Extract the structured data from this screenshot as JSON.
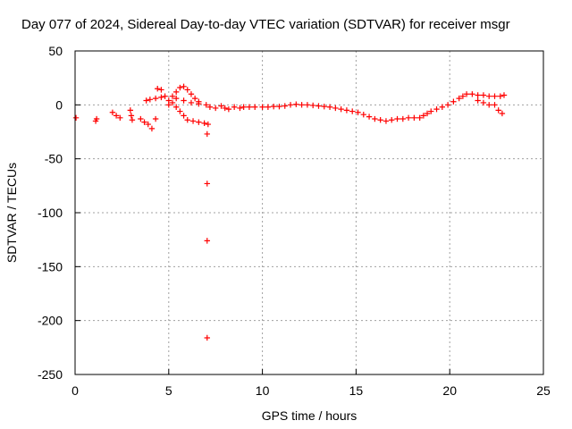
{
  "chart_data": {
    "type": "scatter",
    "title": "Day 077 of 2024, Sidereal Day-to-day VTEC variation (SDTVAR) for receiver msgr",
    "xlabel": "GPS time / hours",
    "ylabel": "SDTVAR / TECUs",
    "xlim": [
      0,
      25
    ],
    "ylim": [
      -250,
      50
    ],
    "xticks": [
      "0",
      "5",
      "10",
      "15",
      "20",
      "25"
    ],
    "yticks": [
      "50",
      "0",
      "-50",
      "-100",
      "-150",
      "-200",
      "-250"
    ],
    "grid": true,
    "marker": "+",
    "color": "#ff0000",
    "series": [
      {
        "name": "SDTVAR",
        "points": [
          [
            0.05,
            -12
          ],
          [
            1.1,
            -15
          ],
          [
            1.15,
            -13
          ],
          [
            2.0,
            -7
          ],
          [
            2.2,
            -10
          ],
          [
            2.4,
            -12
          ],
          [
            2.95,
            -5
          ],
          [
            3.0,
            -10
          ],
          [
            3.05,
            -14
          ],
          [
            3.5,
            -13
          ],
          [
            3.7,
            -16
          ],
          [
            3.9,
            -18
          ],
          [
            4.1,
            -22
          ],
          [
            4.3,
            -13
          ],
          [
            3.8,
            4
          ],
          [
            4.0,
            5
          ],
          [
            4.3,
            6
          ],
          [
            4.6,
            7
          ],
          [
            4.4,
            15
          ],
          [
            4.6,
            14
          ],
          [
            4.8,
            8
          ],
          [
            5.0,
            0
          ],
          [
            5.0,
            4
          ],
          [
            5.2,
            8
          ],
          [
            5.4,
            12
          ],
          [
            5.6,
            16
          ],
          [
            5.8,
            17
          ],
          [
            6.0,
            14
          ],
          [
            6.2,
            10
          ],
          [
            6.4,
            6
          ],
          [
            6.6,
            3
          ],
          [
            5.2,
            2
          ],
          [
            5.4,
            -2
          ],
          [
            5.6,
            -6
          ],
          [
            5.8,
            -10
          ],
          [
            6.0,
            -14
          ],
          [
            6.3,
            -15
          ],
          [
            6.6,
            -16
          ],
          [
            6.9,
            -17
          ],
          [
            7.1,
            -18
          ],
          [
            5.4,
            6
          ],
          [
            5.8,
            4
          ],
          [
            6.2,
            2
          ],
          [
            6.6,
            1
          ],
          [
            7.0,
            0
          ],
          [
            7.2,
            -2
          ],
          [
            7.5,
            -3
          ],
          [
            7.8,
            -1
          ],
          [
            8.0,
            -3
          ],
          [
            8.2,
            -4
          ],
          [
            8.5,
            -2
          ],
          [
            8.8,
            -3
          ],
          [
            9.0,
            -2
          ],
          [
            9.3,
            -2
          ],
          [
            9.6,
            -2
          ],
          [
            10.0,
            -2
          ],
          [
            10.3,
            -2
          ],
          [
            10.6,
            -1.5
          ],
          [
            10.9,
            -1.5
          ],
          [
            11.2,
            -1
          ],
          [
            11.5,
            0
          ],
          [
            11.8,
            0.5
          ],
          [
            12.1,
            0
          ],
          [
            12.4,
            0
          ],
          [
            12.7,
            -0.5
          ],
          [
            13.0,
            -1
          ],
          [
            13.3,
            -1.5
          ],
          [
            13.6,
            -2
          ],
          [
            13.9,
            -3
          ],
          [
            14.2,
            -4
          ],
          [
            14.5,
            -5
          ],
          [
            14.8,
            -6
          ],
          [
            15.1,
            -7
          ],
          [
            15.4,
            -9
          ],
          [
            15.7,
            -11
          ],
          [
            16.0,
            -13
          ],
          [
            16.3,
            -14
          ],
          [
            16.6,
            -15
          ],
          [
            16.9,
            -14
          ],
          [
            17.2,
            -13
          ],
          [
            17.5,
            -13
          ],
          [
            17.8,
            -12
          ],
          [
            18.1,
            -12
          ],
          [
            18.4,
            -12
          ],
          [
            18.6,
            -10
          ],
          [
            18.8,
            -8
          ],
          [
            19.0,
            -6
          ],
          [
            19.3,
            -4
          ],
          [
            19.6,
            -2
          ],
          [
            19.9,
            0
          ],
          [
            20.2,
            3
          ],
          [
            20.5,
            6
          ],
          [
            20.7,
            8
          ],
          [
            20.9,
            10
          ],
          [
            21.2,
            10
          ],
          [
            21.5,
            9
          ],
          [
            21.8,
            9
          ],
          [
            22.1,
            8
          ],
          [
            22.4,
            8
          ],
          [
            22.7,
            8
          ],
          [
            22.9,
            9
          ],
          [
            21.5,
            4
          ],
          [
            21.8,
            2
          ],
          [
            22.1,
            0
          ],
          [
            22.4,
            0
          ],
          [
            22.6,
            -5
          ],
          [
            22.8,
            -8
          ],
          [
            7.05,
            -27
          ],
          [
            7.05,
            -73
          ],
          [
            7.05,
            -126
          ],
          [
            7.05,
            -216
          ]
        ]
      }
    ]
  }
}
